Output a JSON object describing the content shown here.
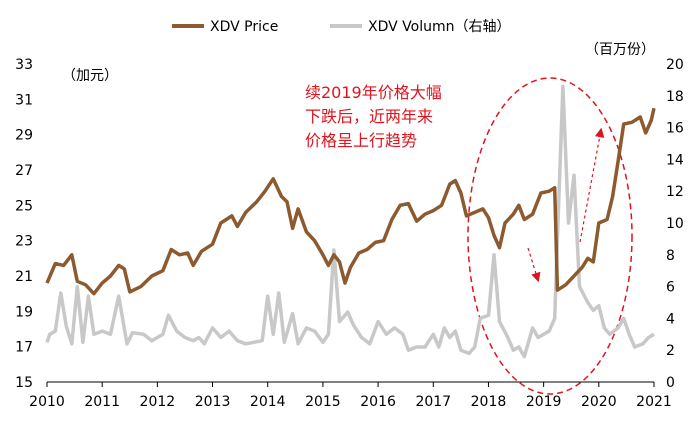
{
  "chart_data": {
    "type": "line",
    "y_label": "（加元）",
    "y2_label": "（百万份）",
    "annotation": [
      "续2019年价格大幅",
      "下跌后，近两年来",
      "价格呈上行趋势"
    ],
    "xlim": [
      2010,
      2021
    ],
    "xticks": [
      2010,
      2011,
      2012,
      2013,
      2014,
      2015,
      2016,
      2017,
      2018,
      2019,
      2020,
      2021
    ],
    "ylim": [
      15,
      33
    ],
    "yticks": [
      15,
      17,
      19,
      21,
      23,
      25,
      27,
      29,
      31,
      33
    ],
    "y2lim": [
      0,
      20
    ],
    "y2ticks": [
      0,
      2,
      4,
      6,
      8,
      10,
      12,
      14,
      16,
      18,
      20
    ],
    "legend": "top",
    "series": [
      {
        "name": "XDV Price",
        "color": "#8c5a2e",
        "axis": "y",
        "x": [
          2010.0,
          2010.15,
          2010.3,
          2010.45,
          2010.55,
          2010.7,
          2010.85,
          2011.0,
          2011.15,
          2011.3,
          2011.4,
          2011.5,
          2011.7,
          2011.9,
          2012.1,
          2012.25,
          2012.4,
          2012.55,
          2012.65,
          2012.8,
          2013.0,
          2013.15,
          2013.35,
          2013.45,
          2013.6,
          2013.8,
          2013.95,
          2014.1,
          2014.25,
          2014.35,
          2014.45,
          2014.55,
          2014.7,
          2014.85,
          2015.0,
          2015.1,
          2015.2,
          2015.3,
          2015.4,
          2015.5,
          2015.65,
          2015.8,
          2015.95,
          2016.1,
          2016.25,
          2016.4,
          2016.55,
          2016.7,
          2016.85,
          2017.0,
          2017.15,
          2017.3,
          2017.4,
          2017.5,
          2017.6,
          2017.75,
          2017.9,
          2018.0,
          2018.1,
          2018.2,
          2018.3,
          2018.45,
          2018.55,
          2018.65,
          2018.8,
          2018.95,
          2019.1,
          2019.2,
          2019.25,
          2019.4,
          2019.55,
          2019.7,
          2019.8,
          2019.9,
          2020.0,
          2020.15,
          2020.25,
          2020.35,
          2020.45,
          2020.6,
          2020.75,
          2020.85,
          2020.95,
          2021.0
        ],
        "values": [
          20.6,
          21.7,
          21.6,
          22.2,
          20.7,
          20.5,
          20.0,
          20.6,
          21.0,
          21.6,
          21.4,
          20.1,
          20.4,
          21.0,
          21.3,
          22.5,
          22.2,
          22.3,
          21.6,
          22.4,
          22.8,
          24.0,
          24.4,
          23.8,
          24.6,
          25.2,
          25.8,
          26.5,
          25.5,
          25.2,
          23.7,
          24.8,
          23.5,
          23.0,
          22.2,
          21.6,
          22.2,
          21.8,
          20.6,
          21.5,
          22.3,
          22.5,
          22.9,
          23.0,
          24.2,
          25.0,
          25.1,
          24.1,
          24.5,
          24.7,
          25.0,
          26.2,
          26.4,
          25.7,
          24.4,
          24.6,
          24.8,
          24.3,
          23.3,
          22.6,
          24.0,
          24.5,
          25.0,
          24.2,
          24.5,
          25.7,
          25.8,
          26.0,
          20.2,
          20.5,
          21.0,
          21.5,
          22.0,
          21.8,
          24.0,
          24.2,
          25.5,
          27.5,
          29.6,
          29.7,
          30.0,
          29.1,
          29.8,
          30.5
        ]
      },
      {
        "name": "XDV Volumn（右轴）",
        "color": "#c8c8c8",
        "axis": "y2",
        "x": [
          2010.0,
          2010.05,
          2010.15,
          2010.25,
          2010.35,
          2010.45,
          2010.55,
          2010.65,
          2010.75,
          2010.85,
          2011.0,
          2011.15,
          2011.3,
          2011.45,
          2011.55,
          2011.75,
          2011.9,
          2012.1,
          2012.2,
          2012.35,
          2012.5,
          2012.65,
          2012.75,
          2012.85,
          2013.0,
          2013.15,
          2013.3,
          2013.45,
          2013.6,
          2013.75,
          2013.9,
          2014.0,
          2014.1,
          2014.2,
          2014.3,
          2014.45,
          2014.55,
          2014.7,
          2014.85,
          2015.0,
          2015.1,
          2015.2,
          2015.3,
          2015.45,
          2015.55,
          2015.7,
          2015.85,
          2016.0,
          2016.15,
          2016.3,
          2016.45,
          2016.55,
          2016.7,
          2016.85,
          2017.0,
          2017.1,
          2017.2,
          2017.3,
          2017.4,
          2017.5,
          2017.65,
          2017.75,
          2017.85,
          2018.0,
          2018.1,
          2018.2,
          2018.35,
          2018.45,
          2018.55,
          2018.65,
          2018.8,
          2018.9,
          2019.0,
          2019.1,
          2019.2,
          2019.25,
          2019.35,
          2019.45,
          2019.55,
          2019.65,
          2019.8,
          2019.9,
          2020.0,
          2020.1,
          2020.2,
          2020.35,
          2020.45,
          2020.55,
          2020.65,
          2020.8,
          2020.9,
          2021.0
        ],
        "values": [
          2.5,
          3.0,
          3.2,
          5.6,
          3.5,
          2.4,
          6.0,
          2.5,
          5.4,
          3.0,
          3.2,
          3.0,
          5.4,
          2.4,
          3.1,
          3.0,
          2.6,
          3.0,
          4.2,
          3.2,
          2.8,
          2.6,
          2.8,
          2.4,
          3.4,
          2.8,
          3.2,
          2.6,
          2.4,
          2.5,
          2.6,
          5.4,
          3.0,
          5.6,
          2.5,
          4.3,
          2.4,
          3.4,
          3.2,
          2.5,
          3.0,
          8.3,
          3.8,
          4.4,
          3.6,
          2.8,
          2.4,
          3.8,
          3.0,
          3.4,
          3.0,
          2.0,
          2.2,
          2.2,
          3.0,
          2.2,
          3.4,
          2.8,
          3.2,
          2.0,
          1.8,
          2.2,
          4.0,
          4.2,
          8.0,
          3.8,
          2.8,
          2.0,
          2.2,
          1.6,
          3.4,
          2.8,
          3.0,
          3.2,
          4.0,
          9.0,
          18.6,
          10.0,
          13.0,
          6.0,
          5.0,
          4.5,
          4.8,
          3.4,
          3.0,
          3.4,
          4.0,
          3.0,
          2.2,
          2.4,
          2.8,
          3.0
        ]
      }
    ]
  }
}
